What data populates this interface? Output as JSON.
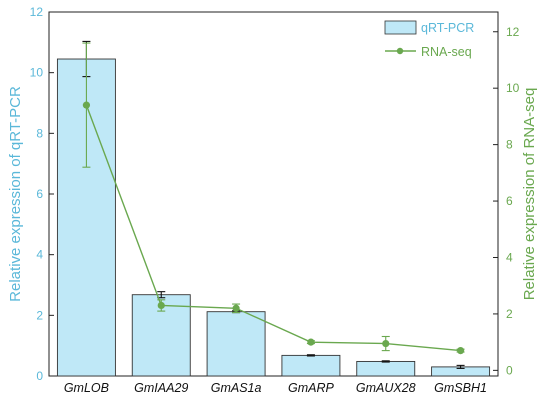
{
  "chart_data": {
    "type": "bar",
    "categories": [
      "GmLOB",
      "GmIAA29",
      "GmAS1a",
      "GmARP",
      "GmAUX28",
      "GmSBH1"
    ],
    "series": [
      {
        "name": "qRT-PCR",
        "kind": "bar",
        "axis": "left",
        "values": [
          10.45,
          2.68,
          2.12,
          0.68,
          0.48,
          0.3
        ],
        "error": [
          0.58,
          0.1,
          0.03,
          0.02,
          0.02,
          0.05
        ]
      },
      {
        "name": "RNA-seq",
        "kind": "line",
        "axis": "right",
        "values": [
          9.4,
          2.3,
          2.2,
          1.0,
          0.95,
          0.7
        ],
        "error": [
          2.2,
          0.2,
          0.15,
          0.05,
          0.25,
          0.05
        ]
      }
    ],
    "ylabel_left": "Relative expression of qRT-PCR",
    "ylabel_right": "Relative expression of RNA-seq",
    "ylim_left": [
      0,
      12
    ],
    "ylim_right": [
      -0.2,
      12.7
    ],
    "yticks_left": [
      "0",
      "2",
      "4",
      "6",
      "8",
      "10",
      "12"
    ],
    "yticks_right": [
      "0",
      "2",
      "4",
      "6",
      "8",
      "10",
      "12"
    ],
    "legend_position": "top-right",
    "grid": false,
    "colors": {
      "bar_fill": "#bfe8f7",
      "bar_edge": "#333333",
      "line": "#6aa84f",
      "left_axis": "#5bb8d9",
      "right_axis": "#6aa84f"
    }
  }
}
